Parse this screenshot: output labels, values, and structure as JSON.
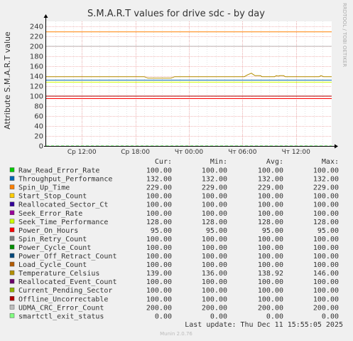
{
  "chart_data": {
    "type": "line",
    "title": "S.M.A.R.T values for drive sdc - by day",
    "ylabel": "Attribute S.M.A.R.T value",
    "side_label": "RRDTOOL / TOBI OETIKER",
    "ylim": [
      0,
      250
    ],
    "yticks": [
      0,
      20,
      40,
      60,
      80,
      100,
      120,
      140,
      160,
      180,
      200,
      220,
      240
    ],
    "xlim": [
      0,
      32
    ],
    "xticks": [
      {
        "label": "Ср 12:00",
        "x": 4
      },
      {
        "label": "Ср 18:00",
        "x": 10
      },
      {
        "label": "Чт 00:00",
        "x": 16
      },
      {
        "label": "Чт 06:00",
        "x": 22
      },
      {
        "label": "Чт 12:00",
        "x": 28
      }
    ],
    "grid": true,
    "legend_headers": {
      "cur": "Cur:",
      "min": "Min:",
      "avg": "Avg:",
      "max": "Max:"
    },
    "series": [
      {
        "name": "Raw_Read_Error_Rate",
        "color": "#00cc00",
        "cur": "100.00",
        "min": "100.00",
        "avg": "100.00",
        "max": "100.00",
        "value": 100
      },
      {
        "name": "Throughput_Performance",
        "color": "#0066b3",
        "cur": "132.00",
        "min": "132.00",
        "avg": "132.00",
        "max": "132.00",
        "value": 132
      },
      {
        "name": "Spin_Up_Time",
        "color": "#ff8000",
        "cur": "229.00",
        "min": "229.00",
        "avg": "229.00",
        "max": "229.00",
        "value": 229
      },
      {
        "name": "Start_Stop_Count",
        "color": "#ffcc00",
        "cur": "100.00",
        "min": "100.00",
        "avg": "100.00",
        "max": "100.00",
        "value": 100
      },
      {
        "name": "Reallocated_Sector_Ct",
        "color": "#330099",
        "cur": "100.00",
        "min": "100.00",
        "avg": "100.00",
        "max": "100.00",
        "value": 100
      },
      {
        "name": "Seek_Error_Rate",
        "color": "#990099",
        "cur": "100.00",
        "min": "100.00",
        "avg": "100.00",
        "max": "100.00",
        "value": 100
      },
      {
        "name": "Seek_Time_Performance",
        "color": "#ccff00",
        "cur": "128.00",
        "min": "128.00",
        "avg": "128.00",
        "max": "128.00",
        "value": 128
      },
      {
        "name": "Power_On_Hours",
        "color": "#ff0000",
        "cur": "95.00",
        "min": "95.00",
        "avg": "95.00",
        "max": "95.00",
        "value": 95
      },
      {
        "name": "Spin_Retry_Count",
        "color": "#808080",
        "cur": "100.00",
        "min": "100.00",
        "avg": "100.00",
        "max": "100.00",
        "value": 100
      },
      {
        "name": "Power_Cycle_Count",
        "color": "#008f00",
        "cur": "100.00",
        "min": "100.00",
        "avg": "100.00",
        "max": "100.00",
        "value": 100
      },
      {
        "name": "Power_Off_Retract_Count",
        "color": "#00487d",
        "cur": "100.00",
        "min": "100.00",
        "avg": "100.00",
        "max": "100.00",
        "value": 100
      },
      {
        "name": "Load_Cycle_Count",
        "color": "#b35a00",
        "cur": "100.00",
        "min": "100.00",
        "avg": "100.00",
        "max": "100.00",
        "value": 100
      },
      {
        "name": "Temperature_Celsius",
        "color": "#b38f00",
        "cur": "139.00",
        "min": "136.00",
        "avg": "138.92",
        "max": "146.00",
        "points": [
          [
            0,
            139
          ],
          [
            11,
            139
          ],
          [
            11.4,
            136
          ],
          [
            14,
            136
          ],
          [
            14.4,
            139
          ],
          [
            22.2,
            139
          ],
          [
            22.6,
            143
          ],
          [
            23.0,
            146
          ],
          [
            23.4,
            141
          ],
          [
            24.0,
            141
          ],
          [
            24.2,
            139
          ],
          [
            25.6,
            139
          ],
          [
            25.8,
            141
          ],
          [
            26.0,
            140
          ],
          [
            26.2,
            141
          ],
          [
            26.6,
            141
          ],
          [
            26.8,
            139
          ],
          [
            30.6,
            139
          ],
          [
            30.8,
            141
          ],
          [
            31.1,
            139
          ],
          [
            32,
            139
          ]
        ]
      },
      {
        "name": "Reallocated_Event_Count",
        "color": "#6b006b",
        "cur": "100.00",
        "min": "100.00",
        "avg": "100.00",
        "max": "100.00",
        "value": 100
      },
      {
        "name": "Current_Pending_Sector",
        "color": "#8fb300",
        "cur": "100.00",
        "min": "100.00",
        "avg": "100.00",
        "max": "100.00",
        "value": 100
      },
      {
        "name": "Offline_Uncorrectable",
        "color": "#b30000",
        "cur": "100.00",
        "min": "100.00",
        "avg": "100.00",
        "max": "100.00",
        "value": 100
      },
      {
        "name": "UDMA_CRC_Error_Count",
        "color": "#bebebe",
        "cur": "200.00",
        "min": "200.00",
        "avg": "200.00",
        "max": "200.00",
        "value": 200
      },
      {
        "name": "smartctl_exit_status",
        "color": "#80ff80",
        "cur": "0.00",
        "min": "0.00",
        "avg": "0.00",
        "max": "0.00",
        "value": 0
      }
    ],
    "last_update": "Last update: Thu Dec 11 15:55:05 2025",
    "footer": "Munin 2.0.76"
  }
}
